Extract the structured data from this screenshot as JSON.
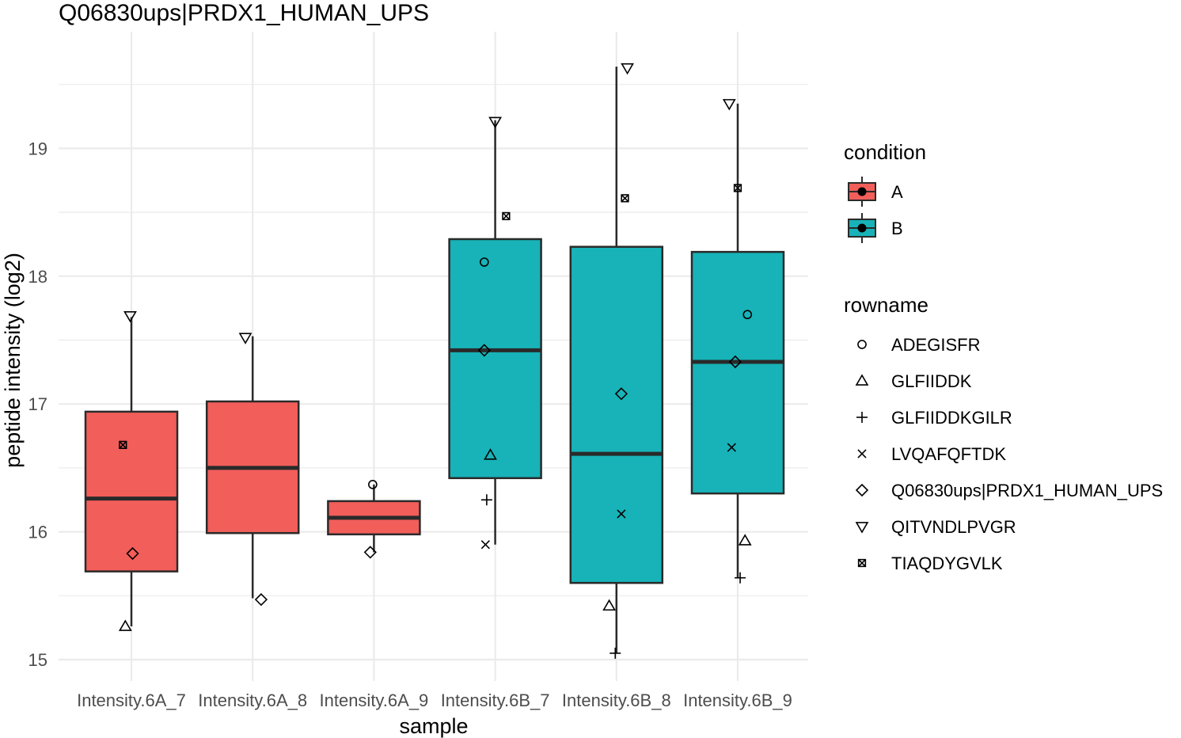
{
  "chart_data": {
    "type": "boxplot",
    "title": "Q06830ups|PRDX1_HUMAN_UPS",
    "xlabel": "sample",
    "ylabel": "peptide intensity (log2)",
    "ylim": [
      14.9,
      19.75
    ],
    "yticks": [
      15,
      16,
      17,
      18,
      19
    ],
    "grid": true,
    "legend_position": "right",
    "categories": [
      "Intensity.6A_7",
      "Intensity.6A_8",
      "Intensity.6A_9",
      "Intensity.6B_7",
      "Intensity.6B_8",
      "Intensity.6B_9"
    ],
    "condition_of_category": [
      "A",
      "A",
      "A",
      "B",
      "B",
      "B"
    ],
    "boxes": [
      {
        "lower_whisker": 15.26,
        "q1": 15.69,
        "median": 16.26,
        "q3": 16.94,
        "upper_whisker": 17.68
      },
      {
        "lower_whisker": 15.48,
        "q1": 15.99,
        "median": 16.5,
        "q3": 17.02,
        "upper_whisker": 17.53
      },
      {
        "lower_whisker": 15.84,
        "q1": 15.98,
        "median": 16.11,
        "q3": 16.24,
        "upper_whisker": 16.37
      },
      {
        "lower_whisker": 15.9,
        "q1": 16.42,
        "median": 17.42,
        "q3": 18.29,
        "upper_whisker": 19.22
      },
      {
        "lower_whisker": 15.05,
        "q1": 15.6,
        "median": 16.61,
        "q3": 18.23,
        "upper_whisker": 19.64
      },
      {
        "lower_whisker": 15.64,
        "q1": 16.3,
        "median": 17.33,
        "q3": 18.19,
        "upper_whisker": 19.35
      }
    ],
    "points": [
      {
        "cat": 0,
        "dx": -0.05,
        "y": 15.26,
        "shape": "triangle"
      },
      {
        "cat": 0,
        "dx": 0.01,
        "y": 15.83,
        "shape": "diamond"
      },
      {
        "cat": 0,
        "dx": -0.07,
        "y": 16.68,
        "shape": "boxx"
      },
      {
        "cat": 0,
        "dx": -0.01,
        "y": 17.69,
        "shape": "triangle-down"
      },
      {
        "cat": 1,
        "dx": 0.07,
        "y": 15.47,
        "shape": "diamond"
      },
      {
        "cat": 1,
        "dx": -0.06,
        "y": 17.52,
        "shape": "triangle-down"
      },
      {
        "cat": 2,
        "dx": -0.03,
        "y": 15.84,
        "shape": "diamond"
      },
      {
        "cat": 2,
        "dx": -0.01,
        "y": 16.37,
        "shape": "circle"
      },
      {
        "cat": 3,
        "dx": -0.08,
        "y": 15.9,
        "shape": "x"
      },
      {
        "cat": 3,
        "dx": -0.07,
        "y": 16.25,
        "shape": "plus"
      },
      {
        "cat": 3,
        "dx": -0.04,
        "y": 16.6,
        "shape": "triangle"
      },
      {
        "cat": 3,
        "dx": -0.09,
        "y": 17.42,
        "shape": "diamond"
      },
      {
        "cat": 3,
        "dx": -0.09,
        "y": 18.11,
        "shape": "circle"
      },
      {
        "cat": 3,
        "dx": 0.09,
        "y": 18.47,
        "shape": "boxx"
      },
      {
        "cat": 3,
        "dx": 0.0,
        "y": 19.21,
        "shape": "triangle-down"
      },
      {
        "cat": 4,
        "dx": -0.01,
        "y": 15.05,
        "shape": "plus"
      },
      {
        "cat": 4,
        "dx": -0.06,
        "y": 15.42,
        "shape": "triangle"
      },
      {
        "cat": 4,
        "dx": 0.04,
        "y": 16.14,
        "shape": "x"
      },
      {
        "cat": 4,
        "dx": 0.04,
        "y": 17.08,
        "shape": "diamond"
      },
      {
        "cat": 4,
        "dx": 0.07,
        "y": 18.61,
        "shape": "boxx"
      },
      {
        "cat": 4,
        "dx": 0.09,
        "y": 19.63,
        "shape": "triangle-down"
      },
      {
        "cat": 5,
        "dx": 0.02,
        "y": 15.64,
        "shape": "plus"
      },
      {
        "cat": 5,
        "dx": 0.06,
        "y": 15.93,
        "shape": "triangle"
      },
      {
        "cat": 5,
        "dx": -0.05,
        "y": 16.66,
        "shape": "x"
      },
      {
        "cat": 5,
        "dx": -0.02,
        "y": 17.33,
        "shape": "diamond"
      },
      {
        "cat": 5,
        "dx": 0.08,
        "y": 17.7,
        "shape": "circle"
      },
      {
        "cat": 5,
        "dx": 0.0,
        "y": 18.69,
        "shape": "boxx"
      },
      {
        "cat": 5,
        "dx": -0.07,
        "y": 19.35,
        "shape": "triangle-down"
      }
    ],
    "legend": {
      "condition": {
        "title": "condition",
        "items": [
          {
            "label": "A",
            "color": "#F25E5A"
          },
          {
            "label": "B",
            "color": "#17B3B8"
          }
        ]
      },
      "rowname": {
        "title": "rowname",
        "items": [
          {
            "label": "ADEGISFR",
            "shape": "circle"
          },
          {
            "label": "GLFIIDDK",
            "shape": "triangle"
          },
          {
            "label": "GLFIIDDKGILR",
            "shape": "plus"
          },
          {
            "label": "LVQAFQFTDK",
            "shape": "x"
          },
          {
            "label": "Q06830ups|PRDX1_HUMAN_UPS",
            "shape": "diamond"
          },
          {
            "label": "QITVNDLPVGR",
            "shape": "triangle-down"
          },
          {
            "label": "TIAQDYGVLK",
            "shape": "boxx"
          }
        ]
      }
    },
    "colors": {
      "A": "#F25E5A",
      "B": "#17B3B8",
      "grid": "#EBEBEB",
      "ink": "#2A2A2A"
    }
  }
}
